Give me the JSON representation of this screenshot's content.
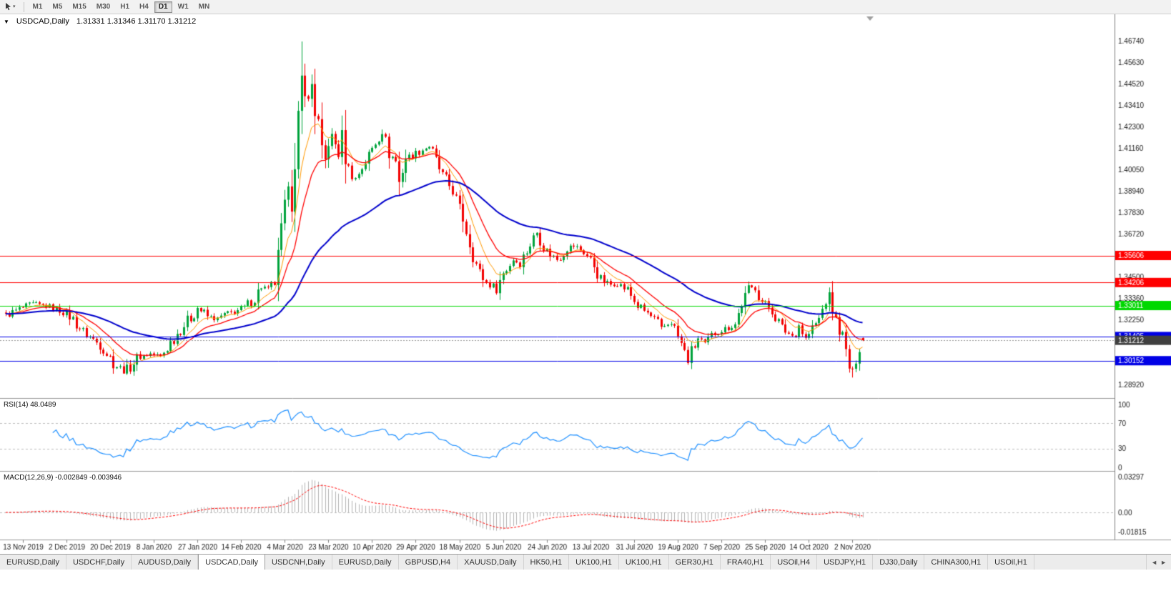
{
  "toolbar": {
    "dropdown_caret": "▾",
    "timeframes": [
      {
        "label": "M1"
      },
      {
        "label": "M5"
      },
      {
        "label": "M15"
      },
      {
        "label": "M30"
      },
      {
        "label": "H1"
      },
      {
        "label": "H4"
      },
      {
        "label": "D1",
        "active": true
      },
      {
        "label": "W1"
      },
      {
        "label": "MN"
      }
    ]
  },
  "chart": {
    "collapse_icon": "▼",
    "symbol_title": "USDCAD,Daily",
    "ohlc_text": "1.31331 1.31346 1.31170 1.31212"
  },
  "rsi_panel": {
    "label": "RSI(14) 48.0489"
  },
  "macd_panel": {
    "label": "MACD(12,26,9) -0.002849 -0.003946"
  },
  "tab_bar": {
    "scroll_left_icon": "◄",
    "scroll_right_icon": "►",
    "tabs": [
      {
        "label": "EURUSD,Daily"
      },
      {
        "label": "USDCHF,Daily"
      },
      {
        "label": "AUDUSD,Daily"
      },
      {
        "label": "USDCAD,Daily",
        "active": true
      },
      {
        "label": "USDCNH,Daily"
      },
      {
        "label": "EURUSD,Daily"
      },
      {
        "label": "GBPUSD,H4"
      },
      {
        "label": "XAUUSD,Daily"
      },
      {
        "label": "HK50,H1"
      },
      {
        "label": "UK100,H1"
      },
      {
        "label": "UK100,H1"
      },
      {
        "label": "GER30,H1"
      },
      {
        "label": "FRA40,H1"
      },
      {
        "label": "USOil,H4"
      },
      {
        "label": "USDJPY,H1"
      },
      {
        "label": "DJ30,Daily"
      },
      {
        "label": "CHINA300,H1"
      },
      {
        "label": "USOil,H1"
      }
    ]
  },
  "chart_data": {
    "type": "candlestick",
    "symbol": "USDCAD",
    "period": "Daily",
    "last_candle": {
      "open": 1.31331,
      "high": 1.31346,
      "low": 1.3117,
      "close": 1.31212
    },
    "price_axis_range": {
      "top": 1.4674,
      "bottom": 1.2892
    },
    "price_axis_ticks": [
      "1.46740",
      "1.45630",
      "1.44520",
      "1.43410",
      "1.42300",
      "1.41160",
      "1.40050",
      "1.38940",
      "1.37830",
      "1.36720",
      "1.35610",
      "1.34500",
      "1.33360",
      "1.32250",
      "1.31140",
      "1.30030",
      "1.28920"
    ],
    "date_ticks": [
      "13 Nov 2019",
      "2 Dec 2019",
      "20 Dec 2019",
      "8 Jan 2020",
      "27 Jan 2020",
      "14 Feb 2020",
      "4 Mar 2020",
      "23 Mar 2020",
      "10 Apr 2020",
      "29 Apr 2020",
      "18 May 2020",
      "5 Jun 2020",
      "24 Jun 2020",
      "13 Jul 2020",
      "31 Jul 2020",
      "19 Aug 2020",
      "7 Sep 2020",
      "25 Sep 2020",
      "14 Oct 2020",
      "2 Nov 2020"
    ],
    "horizontal_lines": [
      {
        "price": 1.35606,
        "label": "1.35606",
        "color": "#FF0000"
      },
      {
        "price": 1.34206,
        "label": "1.34206",
        "color": "#FF0000"
      },
      {
        "price": 1.33011,
        "label": "1.33011",
        "color": "#00D800"
      },
      {
        "price": 1.31405,
        "label": "1.31405",
        "color": "#0000E6"
      },
      {
        "price": 1.30152,
        "label": "1.30152",
        "color": "#0000E6"
      }
    ],
    "current_price": {
      "value": 1.31212,
      "label": "1.31212",
      "badge_color": "#3F3F3F"
    },
    "candles": {
      "count": 256,
      "up_color": "#00A33C",
      "down_color": "#F20000",
      "anchors": [
        [
          0,
          1.325
        ],
        [
          4,
          1.3283
        ],
        [
          8,
          1.331
        ],
        [
          13,
          1.3295
        ],
        [
          17,
          1.3268
        ],
        [
          20,
          1.323
        ],
        [
          23,
          1.3165
        ],
        [
          26,
          1.3125
        ],
        [
          29,
          1.308
        ],
        [
          32,
          1.3005
        ],
        [
          35,
          1.2958
        ],
        [
          37,
          1.2985
        ],
        [
          39,
          1.303
        ],
        [
          43,
          1.3052
        ],
        [
          46,
          1.3035
        ],
        [
          49,
          1.311
        ],
        [
          52,
          1.318
        ],
        [
          55,
          1.324
        ],
        [
          57,
          1.329
        ],
        [
          60,
          1.3245
        ],
        [
          63,
          1.323
        ],
        [
          65,
          1.3255
        ],
        [
          68,
          1.327
        ],
        [
          71,
          1.329
        ],
        [
          74,
          1.334
        ],
        [
          76,
          1.34
        ],
        [
          78,
          1.3385
        ],
        [
          80,
          1.342
        ],
        [
          82,
          1.37
        ],
        [
          84,
          1.393
        ],
        [
          85,
          1.382
        ],
        [
          86,
          1.399
        ],
        [
          87,
          1.428
        ],
        [
          88,
          1.448
        ],
        [
          89,
          1.442
        ],
        [
          90,
          1.436
        ],
        [
          91,
          1.445
        ],
        [
          92,
          1.43
        ],
        [
          93,
          1.425
        ],
        [
          94,
          1.41
        ],
        [
          95,
          1.405
        ],
        [
          96,
          1.415
        ],
        [
          97,
          1.418
        ],
        [
          99,
          1.409
        ],
        [
          100,
          1.419
        ],
        [
          101,
          1.406
        ],
        [
          102,
          1.401
        ],
        [
          104,
          1.396
        ],
        [
          106,
          1.402
        ],
        [
          108,
          1.408
        ],
        [
          110,
          1.415
        ],
        [
          112,
          1.421
        ],
        [
          114,
          1.409
        ],
        [
          116,
          1.405
        ],
        [
          117,
          1.394
        ],
        [
          119,
          1.407
        ],
        [
          121,
          1.408
        ],
        [
          123,
          1.41
        ],
        [
          126,
          1.413
        ],
        [
          128,
          1.405
        ],
        [
          130,
          1.397
        ],
        [
          133,
          1.39
        ],
        [
          136,
          1.375
        ],
        [
          139,
          1.356
        ],
        [
          141,
          1.347
        ],
        [
          143,
          1.342
        ],
        [
          146,
          1.339
        ],
        [
          148,
          1.347
        ],
        [
          151,
          1.354
        ],
        [
          153,
          1.352
        ],
        [
          156,
          1.362
        ],
        [
          158,
          1.368
        ],
        [
          161,
          1.358
        ],
        [
          164,
          1.354
        ],
        [
          167,
          1.36
        ],
        [
          169,
          1.361
        ],
        [
          172,
          1.358
        ],
        [
          175,
          1.351
        ],
        [
          177,
          1.343
        ],
        [
          180,
          1.341
        ],
        [
          182,
          1.3415
        ],
        [
          185,
          1.338
        ],
        [
          188,
          1.33
        ],
        [
          191,
          1.326
        ],
        [
          193,
          1.3225
        ],
        [
          195,
          1.318
        ],
        [
          198,
          1.322
        ],
        [
          201,
          1.31
        ],
        [
          203,
          1.301
        ],
        [
          204,
          1.306
        ],
        [
          206,
          1.313
        ],
        [
          208,
          1.31
        ],
        [
          211,
          1.316
        ],
        [
          214,
          1.318
        ],
        [
          217,
          1.3205
        ],
        [
          219,
          1.331
        ],
        [
          221,
          1.338
        ],
        [
          223,
          1.34
        ],
        [
          225,
          1.332
        ],
        [
          228,
          1.328
        ],
        [
          231,
          1.318
        ],
        [
          234,
          1.3145
        ],
        [
          236,
          1.32
        ],
        [
          238,
          1.313
        ],
        [
          240,
          1.318
        ],
        [
          242,
          1.323
        ],
        [
          244,
          1.333
        ],
        [
          245,
          1.334
        ],
        [
          247,
          1.322
        ],
        [
          249,
          1.314
        ],
        [
          250,
          1.306
        ],
        [
          251,
          1.298
        ],
        [
          252,
          1.294
        ],
        [
          253,
          1.303
        ],
        [
          254,
          1.309
        ],
        [
          255,
          1.3121
        ]
      ],
      "key_points": [
        {
          "index": 35,
          "low": 1.295
        },
        {
          "index": 88,
          "high": 1.467
        },
        {
          "index": 203,
          "low": 1.2994
        },
        {
          "index": 245,
          "high": 1.3395
        },
        {
          "index": 252,
          "low": 1.2928
        }
      ]
    },
    "moving_averages": [
      {
        "period": 8,
        "method": "ema",
        "color": "#FF9900",
        "width": 1
      },
      {
        "period": 16,
        "method": "ema",
        "color": "#FF0000",
        "width": 1.3
      },
      {
        "period": 55,
        "method": "ema",
        "color": "#0000CC",
        "width": 2
      }
    ],
    "rsi": {
      "period": 14,
      "value": 48.0489,
      "color": "#1E90FF",
      "scale_labels": [
        "100",
        "70",
        "30",
        "0"
      ],
      "guide_levels": [
        70,
        30
      ]
    },
    "macd": {
      "fast": 12,
      "slow": 26,
      "signal_period": 9,
      "value": -0.002849,
      "signal_value": -0.003946,
      "axis_labels": [
        "0.03297",
        "0.00",
        "-0.01815"
      ],
      "axis_top": 0.03297,
      "axis_bottom": -0.01815,
      "histogram_color": "#B4B4B4",
      "signal_color": "#FF0000"
    }
  }
}
